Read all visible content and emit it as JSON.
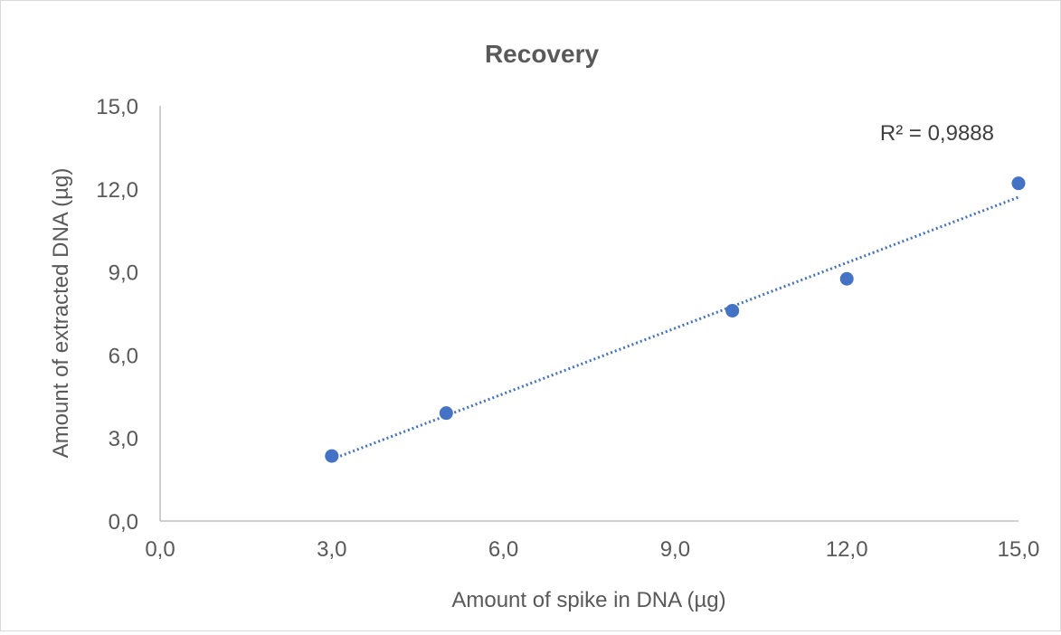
{
  "chart_data": {
    "type": "scatter",
    "title": "Recovery",
    "xlabel": "Amount of spike in DNA (µg)",
    "ylabel": "Amount of extracted DNA (µg)",
    "xlim": [
      0,
      15
    ],
    "ylim": [
      0,
      15
    ],
    "x_ticks": [
      "0,0",
      "3,0",
      "6,0",
      "9,0",
      "12,0",
      "15,0"
    ],
    "y_ticks": [
      "0,0",
      "3,0",
      "6,0",
      "9,0",
      "12,0",
      "15,0"
    ],
    "series": [
      {
        "points": [
          {
            "x": 3,
            "y": 2.35
          },
          {
            "x": 5,
            "y": 3.9
          },
          {
            "x": 10,
            "y": 7.6
          },
          {
            "x": 12,
            "y": 8.75
          },
          {
            "x": 15,
            "y": 12.2
          }
        ],
        "color": "#4472c4",
        "trendline": {
          "type": "linear",
          "style": "dotted",
          "from": {
            "x": 3,
            "y": 2.23
          },
          "to": {
            "x": 15,
            "y": 11.7
          },
          "r_squared_label": "R² = 0,9888"
        }
      }
    ],
    "grid": false,
    "legend": "none"
  }
}
